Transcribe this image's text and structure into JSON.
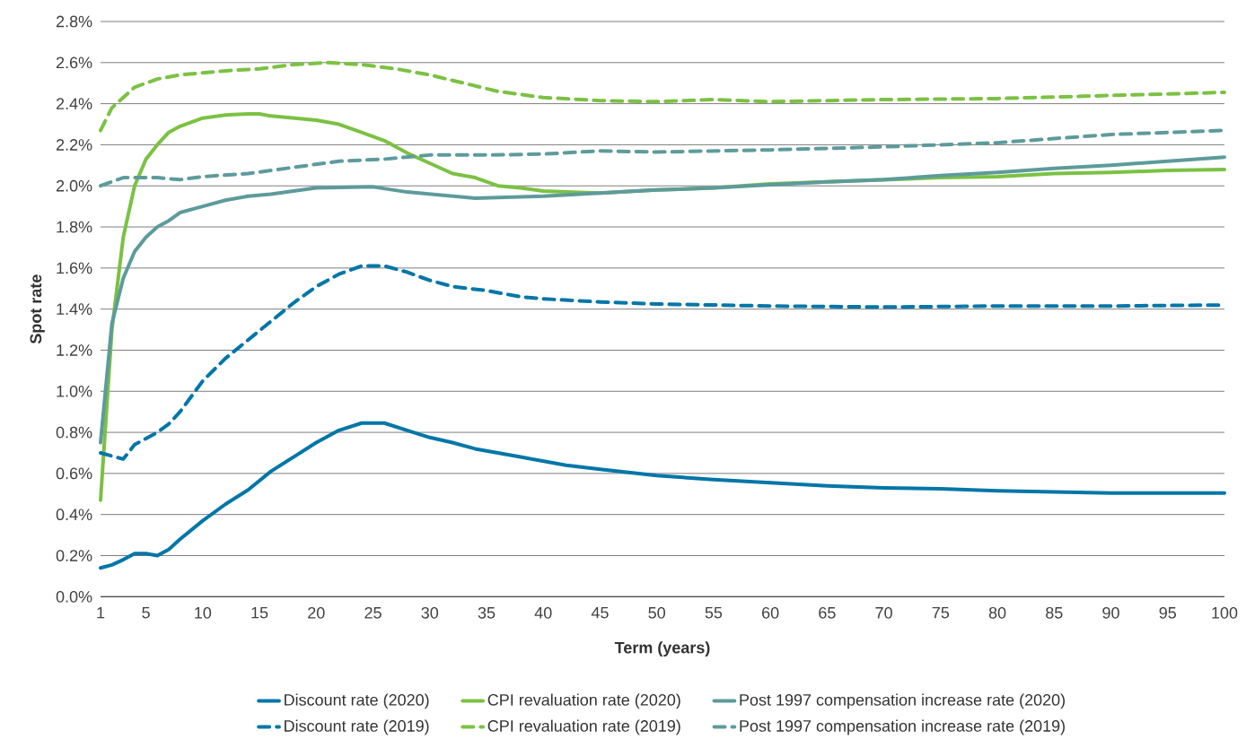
{
  "chart_data": {
    "type": "line",
    "xlabel": "Term (years)",
    "ylabel": "Spot rate",
    "xlim": [
      1,
      100
    ],
    "xticks": [
      1,
      5,
      10,
      15,
      20,
      25,
      30,
      35,
      40,
      45,
      50,
      55,
      60,
      65,
      70,
      75,
      80,
      85,
      90,
      95,
      100
    ],
    "ylim": [
      0,
      2.8
    ],
    "yticks": [
      {
        "value": 0,
        "label": "0.0%"
      },
      {
        "value": 0.2,
        "label": "0.2%"
      },
      {
        "value": 0.4,
        "label": "0.4%"
      },
      {
        "value": 0.6,
        "label": "0.6%"
      },
      {
        "value": 0.8,
        "label": "0.8%"
      },
      {
        "value": 1.0,
        "label": "1.0%"
      },
      {
        "value": 1.2,
        "label": "1.2%"
      },
      {
        "value": 1.4,
        "label": "1.4%"
      },
      {
        "value": 1.6,
        "label": "1.6%"
      },
      {
        "value": 1.8,
        "label": "1.8%"
      },
      {
        "value": 2.0,
        "label": "2.0%"
      },
      {
        "value": 2.2,
        "label": "2.2%"
      },
      {
        "value": 2.4,
        "label": "2.4%"
      },
      {
        "value": 2.6,
        "label": "2.6%"
      },
      {
        "value": 2.8,
        "label": "2.8%"
      }
    ],
    "grid": "y",
    "legend": "bottom",
    "series": [
      {
        "name": "Discount rate (2020)",
        "color": "#0076a8",
        "line_style": "solid",
        "x": [
          1,
          2,
          3,
          4,
          5,
          6,
          7,
          8,
          10,
          12,
          14,
          16,
          18,
          20,
          22,
          24,
          26,
          28,
          30,
          32,
          34,
          36,
          38,
          40,
          42,
          45,
          50,
          55,
          60,
          65,
          70,
          75,
          80,
          85,
          90,
          95,
          100
        ],
        "values": [
          0.14,
          0.155,
          0.18,
          0.21,
          0.21,
          0.2,
          0.23,
          0.28,
          0.37,
          0.45,
          0.52,
          0.61,
          0.68,
          0.75,
          0.81,
          0.845,
          0.845,
          0.81,
          0.775,
          0.75,
          0.72,
          0.7,
          0.68,
          0.66,
          0.64,
          0.62,
          0.59,
          0.57,
          0.555,
          0.54,
          0.53,
          0.525,
          0.515,
          0.51,
          0.505,
          0.505,
          0.505
        ]
      },
      {
        "name": "CPI revaluation rate (2020)",
        "color": "#7bc143",
        "line_style": "solid",
        "x": [
          1,
          2,
          3,
          4,
          5,
          6,
          7,
          8,
          9,
          10,
          12,
          14,
          15,
          16,
          18,
          20,
          22,
          24,
          26,
          28,
          30,
          32,
          34,
          36,
          38,
          40,
          42,
          45,
          50,
          55,
          60,
          65,
          70,
          75,
          80,
          85,
          90,
          95,
          100
        ],
        "values": [
          0.47,
          1.3,
          1.75,
          2.0,
          2.13,
          2.2,
          2.26,
          2.29,
          2.31,
          2.33,
          2.345,
          2.35,
          2.35,
          2.34,
          2.33,
          2.32,
          2.3,
          2.26,
          2.22,
          2.16,
          2.11,
          2.06,
          2.04,
          2.0,
          1.99,
          1.975,
          1.97,
          1.965,
          1.98,
          1.99,
          2.01,
          2.02,
          2.03,
          2.04,
          2.045,
          2.06,
          2.065,
          2.075,
          2.08
        ]
      },
      {
        "name": "Post 1997 compensation increase rate (2020)",
        "color": "#5d9b9b",
        "line_style": "solid",
        "x": [
          1,
          2,
          3,
          4,
          5,
          6,
          7,
          8,
          10,
          12,
          14,
          16,
          18,
          20,
          25,
          28,
          30,
          32,
          34,
          40,
          45,
          50,
          55,
          60,
          65,
          70,
          75,
          80,
          85,
          90,
          95,
          100
        ],
        "values": [
          0.75,
          1.33,
          1.55,
          1.68,
          1.75,
          1.8,
          1.83,
          1.87,
          1.9,
          1.93,
          1.95,
          1.96,
          1.975,
          1.99,
          1.995,
          1.97,
          1.96,
          1.95,
          1.94,
          1.95,
          1.965,
          1.98,
          1.99,
          2.005,
          2.02,
          2.03,
          2.05,
          2.065,
          2.085,
          2.1,
          2.12,
          2.14
        ]
      },
      {
        "name": "Discount rate (2019)",
        "color": "#0076a8",
        "line_style": "dashed",
        "x": [
          1,
          3,
          4,
          6,
          7,
          8,
          10,
          12,
          14,
          16,
          18,
          20,
          22,
          24,
          26,
          28,
          30,
          32,
          35,
          38,
          40,
          45,
          50,
          55,
          60,
          70,
          80,
          90,
          100
        ],
        "values": [
          0.7,
          0.67,
          0.74,
          0.8,
          0.84,
          0.9,
          1.05,
          1.16,
          1.25,
          1.34,
          1.43,
          1.51,
          1.57,
          1.61,
          1.61,
          1.58,
          1.54,
          1.51,
          1.49,
          1.46,
          1.45,
          1.435,
          1.425,
          1.42,
          1.415,
          1.41,
          1.415,
          1.415,
          1.42
        ]
      },
      {
        "name": "CPI revaluation rate (2019)",
        "color": "#7bc143",
        "line_style": "dashed",
        "x": [
          1,
          2,
          4,
          6,
          8,
          10,
          12,
          15,
          18,
          21,
          24,
          27,
          30,
          33,
          36,
          40,
          45,
          50,
          55,
          60,
          70,
          80,
          90,
          100
        ],
        "values": [
          2.27,
          2.38,
          2.48,
          2.52,
          2.54,
          2.55,
          2.56,
          2.57,
          2.59,
          2.6,
          2.59,
          2.57,
          2.54,
          2.5,
          2.46,
          2.43,
          2.415,
          2.41,
          2.42,
          2.41,
          2.42,
          2.425,
          2.44,
          2.455
        ]
      },
      {
        "name": "Post 1997 compensation increase rate (2019)",
        "color": "#5d9b9b",
        "line_style": "dashed",
        "x": [
          1,
          3,
          6,
          8,
          10,
          14,
          18,
          22,
          26,
          30,
          35,
          40,
          45,
          50,
          60,
          70,
          80,
          85,
          90,
          95,
          100
        ],
        "values": [
          2.0,
          2.04,
          2.04,
          2.03,
          2.045,
          2.06,
          2.09,
          2.12,
          2.13,
          2.15,
          2.15,
          2.155,
          2.17,
          2.165,
          2.175,
          2.19,
          2.21,
          2.23,
          2.25,
          2.26,
          2.27
        ]
      }
    ]
  }
}
